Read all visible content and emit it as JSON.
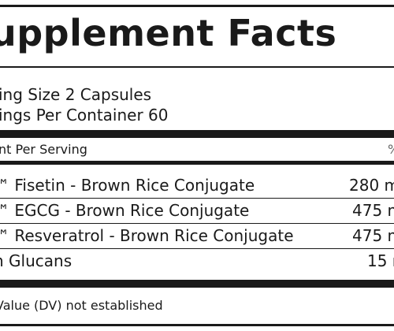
{
  "label": {
    "title": "upplement Facts",
    "serving_size": "ing Size 2 Capsules",
    "servings_per_container": "ings Per Container 60",
    "header_left": "nt Per Serving",
    "header_right": "%",
    "rows": [
      {
        "name": "™ Fisetin - Brown Rice Conjugate",
        "amount": "280 m"
      },
      {
        "name": "™ EGCG - Brown Rice Conjugate",
        "amount": "475 m"
      },
      {
        "name": "™ Resveratrol - Brown Rice Conjugate",
        "amount": "475 m"
      },
      {
        "name": "n Glucans",
        "amount": "15 m"
      }
    ],
    "footnote": "Value (DV) not established"
  }
}
